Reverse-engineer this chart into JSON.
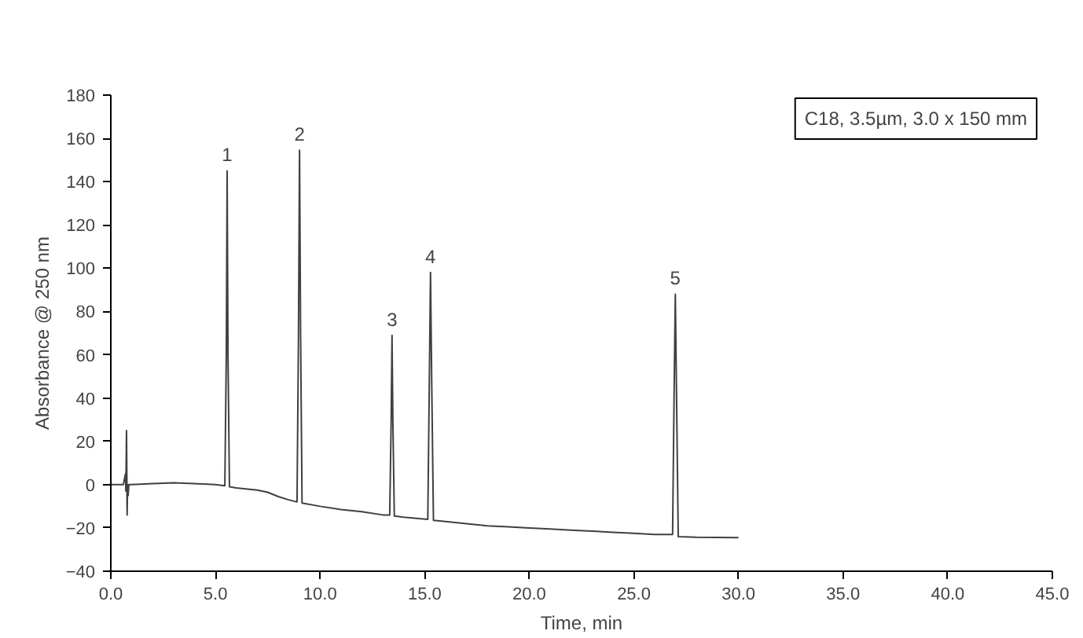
{
  "chart_data": {
    "type": "line",
    "xlabel": "Time, min",
    "ylabel": "Absorbance @ 250 nm",
    "series": [
      {
        "color": "#404040",
        "x": [
          0.0,
          0.6,
          0.7,
          0.72,
          0.75,
          0.78,
          0.8,
          0.83,
          0.86,
          1.0,
          2.0,
          3.0,
          4.0,
          5.0,
          5.45,
          5.52,
          5.56,
          5.6,
          5.67,
          6.0,
          7.0,
          7.5,
          8.0,
          8.5,
          8.9,
          8.97,
          9.02,
          9.07,
          9.14,
          10.0,
          11.0,
          12.0,
          13.0,
          13.33,
          13.4,
          13.44,
          13.48,
          13.55,
          14.0,
          15.15,
          15.22,
          15.28,
          15.34,
          15.42,
          16.0,
          17.0,
          18.0,
          19.0,
          20.0,
          21.0,
          22.0,
          23.0,
          24.0,
          25.0,
          26.0,
          26.85,
          26.92,
          26.98,
          27.04,
          27.12,
          28.0,
          29.0,
          30.0
        ],
        "values": [
          0,
          0,
          5,
          -3,
          25,
          -14,
          0,
          -5,
          0,
          0,
          0.5,
          0.8,
          0.5,
          0,
          -0.5,
          60,
          145,
          60,
          -1,
          -1.5,
          -2.5,
          -3.5,
          -5.5,
          -7,
          -8,
          70,
          154.5,
          70,
          -8.5,
          -10,
          -11.5,
          -12.5,
          -14,
          -14,
          30,
          69,
          30,
          -14.5,
          -15,
          -16,
          45,
          98,
          45,
          -16.5,
          -17,
          -18,
          -19,
          -19.5,
          -20,
          -20.5,
          -21,
          -21.5,
          -22,
          -22.5,
          -23,
          -23,
          40,
          88,
          40,
          -24,
          -24.3,
          -24.4,
          -24.5
        ]
      }
    ],
    "xlim": [
      0,
      45
    ],
    "ylim": [
      -40,
      180
    ],
    "xticks": [
      {
        "value": 0,
        "label": "0.0"
      },
      {
        "value": 5,
        "label": "5.0"
      },
      {
        "value": 10,
        "label": "10.0"
      },
      {
        "value": 15,
        "label": "15.0"
      },
      {
        "value": 20,
        "label": "20.0"
      },
      {
        "value": 25,
        "label": "25.0"
      },
      {
        "value": 30,
        "label": "30.0"
      },
      {
        "value": 35,
        "label": "35.0"
      },
      {
        "value": 40,
        "label": "40.0"
      },
      {
        "value": 45,
        "label": "45.0"
      }
    ],
    "yticks": [
      -40,
      -20,
      0,
      20,
      40,
      60,
      80,
      100,
      120,
      140,
      160,
      180
    ],
    "annotations": [
      {
        "text": "1",
        "x": 5.56,
        "y": 145
      },
      {
        "text": "2",
        "x": 9.02,
        "y": 154.5
      },
      {
        "text": "3",
        "x": 13.44,
        "y": 69
      },
      {
        "text": "4",
        "x": 15.28,
        "y": 98
      },
      {
        "text": "5",
        "x": 26.98,
        "y": 88
      },
      "C18, 3.5µm, 3.0 x 150 mm"
    ],
    "grid": false
  }
}
